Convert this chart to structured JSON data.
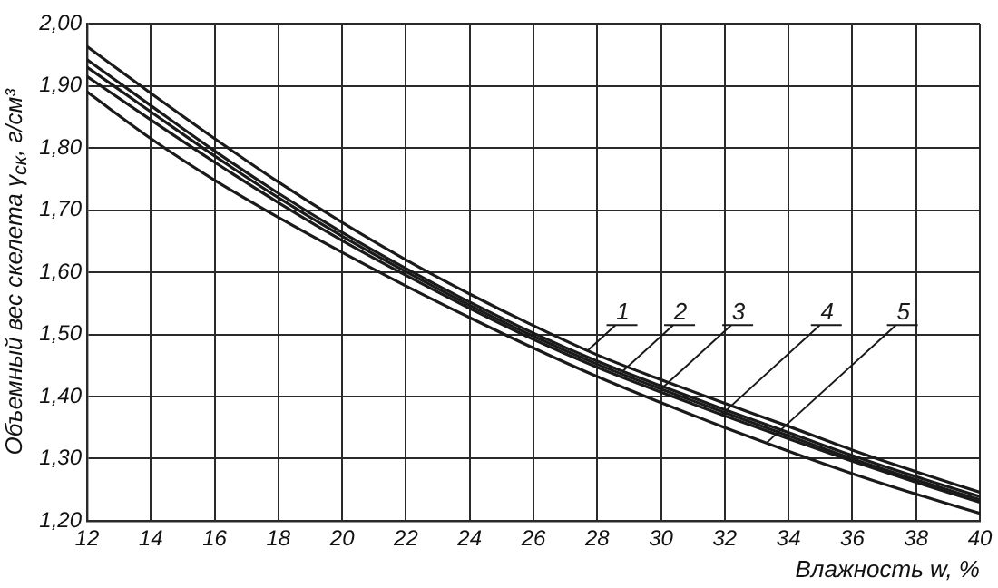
{
  "chart_data": {
    "type": "line",
    "xlabel": "Влажность w, %",
    "ylabel": "Объемный вес скелета γ$_{ск}$, г/см³",
    "x": [
      12,
      14,
      16,
      18,
      20,
      22,
      24,
      26,
      28,
      30,
      32,
      34,
      36,
      38,
      40
    ],
    "series": [
      {
        "color": "#1a1a1a",
        "values": [
          1.963,
          1.888,
          1.815,
          1.745,
          1.68,
          1.62,
          1.565,
          1.514,
          1.467,
          1.427,
          1.389,
          1.352,
          1.314,
          1.279,
          1.246
        ]
      },
      {
        "color": "#1a1a1a",
        "values": [
          1.942,
          1.868,
          1.795,
          1.727,
          1.664,
          1.606,
          1.552,
          1.502,
          1.457,
          1.417,
          1.379,
          1.342,
          1.305,
          1.271,
          1.239
        ]
      },
      {
        "color": "#1a1a1a",
        "values": [
          1.93,
          1.858,
          1.787,
          1.72,
          1.658,
          1.601,
          1.547,
          1.497,
          1.452,
          1.412,
          1.374,
          1.337,
          1.3,
          1.266,
          1.234
        ]
      },
      {
        "color": "#1a1a1a",
        "values": [
          1.915,
          1.845,
          1.777,
          1.712,
          1.651,
          1.595,
          1.542,
          1.492,
          1.447,
          1.407,
          1.369,
          1.332,
          1.296,
          1.262,
          1.23
        ]
      },
      {
        "color": "#1a1a1a",
        "values": [
          1.89,
          1.815,
          1.748,
          1.688,
          1.632,
          1.578,
          1.527,
          1.478,
          1.432,
          1.39,
          1.35,
          1.312,
          1.276,
          1.243,
          1.212
        ]
      }
    ],
    "annotations": [
      {
        "text": "1",
        "x": 27.7,
        "y": 1.474
      },
      {
        "text": "2",
        "x": 28.8,
        "y": 1.441
      },
      {
        "text": "3",
        "x": 30,
        "y": 1.412
      },
      {
        "text": "4",
        "x": 31.9,
        "y": 1.371
      },
      {
        "text": "5",
        "x": 33.3,
        "y": 1.325
      }
    ],
    "xlim": [
      12,
      40
    ],
    "xticks": [
      12,
      14,
      16,
      18,
      20,
      22,
      24,
      26,
      28,
      30,
      32,
      34,
      36,
      38,
      40
    ],
    "ylim": [
      1.2,
      2.0
    ],
    "yticks": [
      {
        "value": 1.2,
        "label": "1,20"
      },
      {
        "value": 1.3,
        "label": "1,30"
      },
      {
        "value": 1.4,
        "label": "1,40"
      },
      {
        "value": 1.5,
        "label": "1,50"
      },
      {
        "value": 1.6,
        "label": "1,60"
      },
      {
        "value": 1.7,
        "label": "1,70"
      },
      {
        "value": 1.8,
        "label": "1,80"
      },
      {
        "value": 1.9,
        "label": "1,90"
      },
      {
        "value": 2.0,
        "label": "2,00"
      }
    ],
    "grid": true
  }
}
